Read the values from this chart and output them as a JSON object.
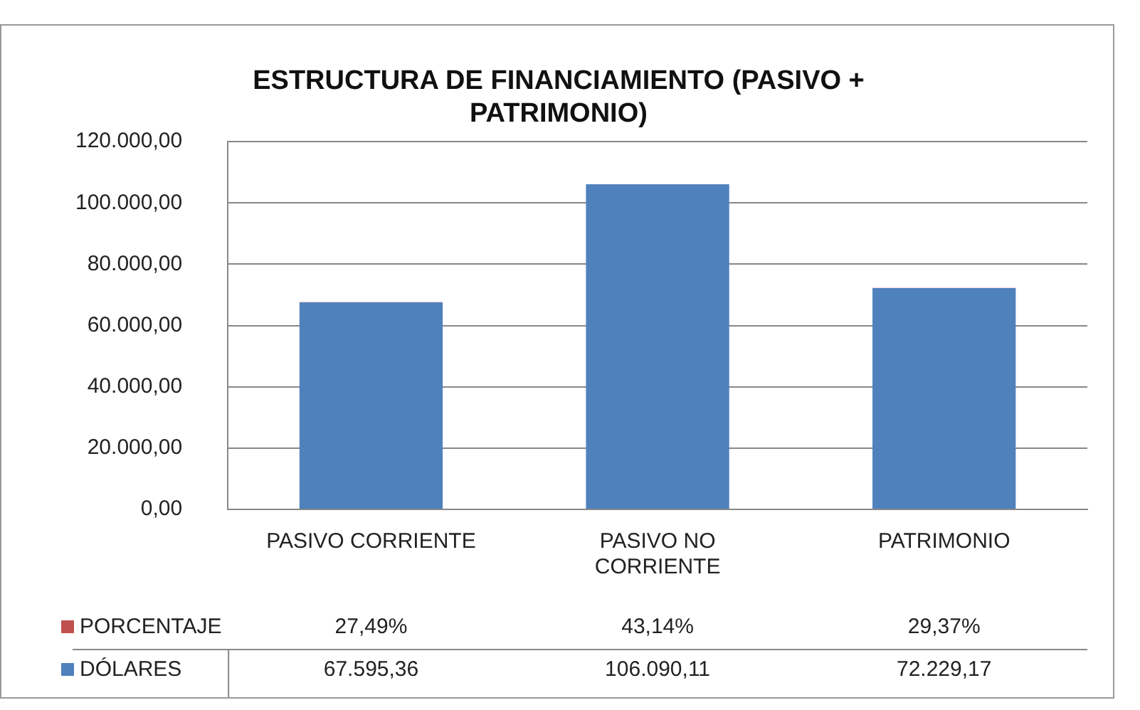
{
  "chart_data": {
    "type": "bar",
    "title": "ESTRUCTURA DE FINANCIAMIENTO (PASIVO + PATRIMONIO)",
    "categories": [
      "PASIVO CORRIENTE",
      "PASIVO NO CORRIENTE",
      "PATRIMONIO"
    ],
    "stacked": true,
    "ylim": [
      0,
      120000
    ],
    "yticks": [
      {
        "value": 0,
        "label": "0,00"
      },
      {
        "value": 20000,
        "label": "20.000,00"
      },
      {
        "value": 40000,
        "label": "40.000,00"
      },
      {
        "value": 60000,
        "label": "60.000,00"
      },
      {
        "value": 80000,
        "label": "80.000,00"
      },
      {
        "value": 100000,
        "label": "100.000,00"
      },
      {
        "value": 120000,
        "label": "120.000,00"
      }
    ],
    "grid": "y",
    "legend": "bottom",
    "series": [
      {
        "name": "DÓLARES",
        "color": "#4f81bd",
        "values": [
          67595.36,
          106090.11,
          72229.17
        ],
        "value_labels": [
          "67.595,36",
          "106.090,11",
          "72.229,17"
        ]
      },
      {
        "name": "PORCENTAJE",
        "color": "#c0504d",
        "values": [
          27.49,
          43.14,
          29.37
        ],
        "value_labels": [
          "27,49%",
          "43,14%",
          "29,37%"
        ]
      }
    ]
  }
}
